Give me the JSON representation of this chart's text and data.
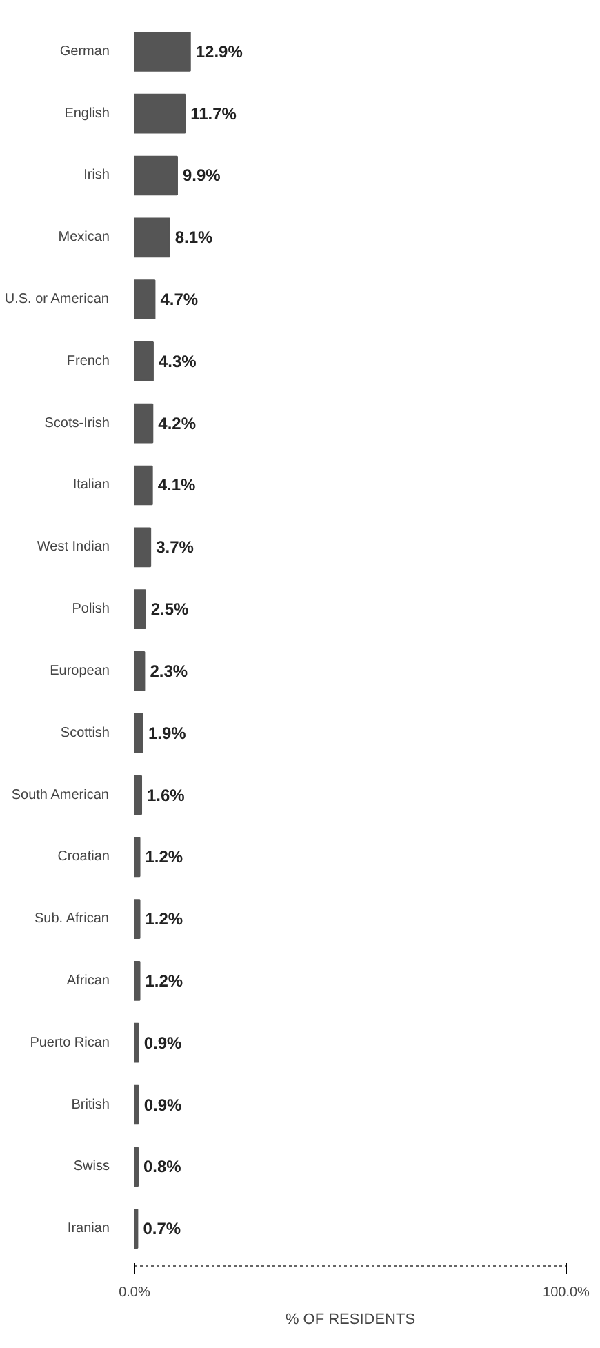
{
  "chart_data": {
    "type": "bar",
    "orientation": "horizontal",
    "xlabel": "% OF RESIDENTS",
    "categories": [
      "German",
      "English",
      "Irish",
      "Mexican",
      "U.S. or American",
      "French",
      "Scots-Irish",
      "Italian",
      "West Indian",
      "Polish",
      "European",
      "Scottish",
      "South American",
      "Croatian",
      "Sub. African",
      "African",
      "Puerto Rican",
      "British",
      "Swiss",
      "Iranian"
    ],
    "values": [
      12.9,
      11.7,
      9.9,
      8.1,
      4.7,
      4.3,
      4.2,
      4.1,
      3.7,
      2.5,
      2.3,
      1.9,
      1.6,
      1.2,
      1.2,
      1.2,
      0.9,
      0.9,
      0.8,
      0.7
    ],
    "value_labels": [
      "12.9%",
      "11.7%",
      "9.9%",
      "8.1%",
      "4.7%",
      "4.3%",
      "4.2%",
      "4.1%",
      "3.7%",
      "2.5%",
      "2.3%",
      "1.9%",
      "1.6%",
      "1.2%",
      "1.2%",
      "1.2%",
      "0.9%",
      "0.9%",
      "0.8%",
      "0.7%"
    ],
    "color": "#555555",
    "xlim": [
      0,
      100
    ],
    "xticks": [
      {
        "value": 0,
        "label": "0.0%"
      },
      {
        "value": 100,
        "label": "100.0%"
      }
    ],
    "grid": false
  }
}
